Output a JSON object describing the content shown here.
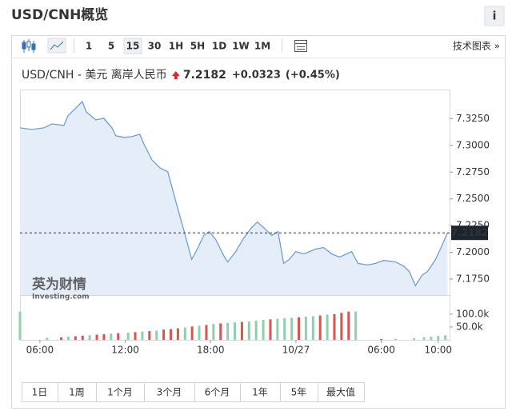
{
  "header": {
    "title": "USD/CNH概览",
    "info": "i"
  },
  "toolbar": {
    "intervals": [
      "1",
      "5",
      "15",
      "30",
      "1H",
      "5H",
      "1D",
      "1W",
      "1M"
    ],
    "selected": 2,
    "tech_chart": "技术图表 »"
  },
  "chart_data": {
    "type": "line",
    "title": "USD/CNH - 美元 离岸人民币",
    "price": 7.2182,
    "change": "+0.0323",
    "change_pct": "(+0.45%)",
    "color": "#6f9fd3",
    "fill": "#e4edf8",
    "x": [
      4.6,
      5.44,
      6.28,
      6.84,
      7.69,
      7.97,
      8.53,
      8.98,
      9.26,
      9.93,
      10.49,
      11.06,
      11.34,
      11.9,
      12.46,
      13.02,
      13.3,
      13.87,
      14.43,
      14.99,
      15.44,
      15.83,
      16.22,
      16.67,
      17.12,
      17.52,
      17.91,
      18.36,
      18.92,
      19.2,
      19.76,
      20.33,
      20.89,
      21.28,
      21.73,
      22.29,
      22.74,
      23.13,
      23.53,
      23.98,
      24.54,
      25.38,
      25.94,
      26.51,
      27.07,
      27.91,
      28.36,
      29.03,
      29.6,
      30.16,
      31.0,
      31.56,
      31.96,
      32.4,
      32.85,
      33.25,
      33.81,
      34.2,
      34.65
    ],
    "values": [
      7.3164,
      7.3149,
      7.3164,
      7.3201,
      7.3187,
      7.3276,
      7.3351,
      7.341,
      7.3313,
      7.3239,
      7.3254,
      7.3164,
      7.309,
      7.3075,
      7.3082,
      7.3104,
      7.3015,
      7.2866,
      7.2791,
      7.2754,
      7.253,
      7.2343,
      7.2157,
      7.1933,
      7.2045,
      7.2157,
      7.2194,
      7.2119,
      7.197,
      7.191,
      7.2007,
      7.2134,
      7.2231,
      7.2284,
      7.2231,
      7.2157,
      7.2194,
      7.1896,
      7.1933,
      7.2007,
      7.1985,
      7.203,
      7.2045,
      7.1985,
      7.1955,
      7.2007,
      7.1896,
      7.1881,
      7.1896,
      7.1925,
      7.191,
      7.1873,
      7.1821,
      7.1687,
      7.1784,
      7.1821,
      7.1933,
      7.2045,
      7.2182
    ],
    "xlim": [
      4.6,
      34.8
    ],
    "xticks": [
      {
        "value": 6,
        "label": "06:00"
      },
      {
        "value": 12,
        "label": "12:00"
      },
      {
        "value": 18,
        "label": "18:00"
      },
      {
        "value": 24,
        "label": "10/27"
      },
      {
        "value": 30,
        "label": "06:00"
      },
      {
        "value": 34,
        "label": "10:00"
      }
    ],
    "ylim": [
      7.16,
      7.35
    ],
    "yticks": [
      {
        "value": 7.325,
        "label": "7.3250"
      },
      {
        "value": 7.3,
        "label": "7.3000"
      },
      {
        "value": 7.275,
        "label": "7.2750"
      },
      {
        "value": 7.25,
        "label": "7.2500"
      },
      {
        "value": 7.225,
        "label": "7.2250"
      },
      {
        "value": 7.2,
        "label": "7.2000"
      },
      {
        "value": 7.175,
        "label": "7.1750"
      }
    ],
    "grid": false,
    "volume": {
      "x": [
        4.6,
        6.5,
        7.5,
        8.0,
        8.5,
        9.0,
        9.5,
        10.0,
        10.5,
        11.0,
        11.5,
        12.2,
        12.7,
        13.2,
        13.7,
        14.2,
        14.7,
        15.2,
        15.7,
        16.2,
        16.7,
        17.2,
        17.7,
        18.2,
        18.7,
        19.2,
        19.7,
        20.2,
        20.7,
        21.2,
        21.7,
        22.2,
        22.7,
        23.2,
        23.7,
        24.2,
        24.7,
        25.2,
        25.7,
        26.2,
        26.7,
        27.2,
        27.7,
        28.2,
        30.0,
        31.0,
        32.3,
        33.0,
        33.5,
        34.0,
        34.5
      ],
      "values": [
        110000,
        8000,
        10000,
        12000,
        14000,
        16000,
        18000,
        20000,
        22000,
        24000,
        26000,
        28000,
        30000,
        32000,
        34000,
        36000,
        40000,
        42000,
        45000,
        48000,
        52000,
        55000,
        58000,
        62000,
        64000,
        66000,
        68000,
        70000,
        72000,
        75000,
        78000,
        80000,
        82000,
        84000,
        86000,
        88000,
        90000,
        92000,
        95000,
        98000,
        100000,
        105000,
        110000,
        110000,
        3000,
        4000,
        6000,
        10000,
        12000,
        15000,
        18000
      ],
      "colors": [
        "#8fcfae",
        "#8fcfae",
        "#d9534f",
        "#8fcfae",
        "#d9534f",
        "#d9534f",
        "#8fcfae",
        "#d9534f",
        "#d9534f",
        "#8fcfae",
        "#d9534f",
        "#8fcfae",
        "#d9534f",
        "#8fcfae",
        "#d9534f",
        "#8fcfae",
        "#d9534f",
        "#d9534f",
        "#d9534f",
        "#8fcfae",
        "#d9534f",
        "#8fcfae",
        "#d9534f",
        "#8fcfae",
        "#d9534f",
        "#8fcfae",
        "#8fcfae",
        "#d9534f",
        "#8fcfae",
        "#8fcfae",
        "#8fcfae",
        "#d9534f",
        "#8fcfae",
        "#8fcfae",
        "#8fcfae",
        "#d9534f",
        "#8fcfae",
        "#8fcfae",
        "#d9534f",
        "#8fcfae",
        "#d9534f",
        "#d9534f",
        "#d9534f",
        "#8fcfae",
        "#d9534f",
        "#8fcfae",
        "#8fcfae",
        "#8fcfae",
        "#8fcfae",
        "#8fcfae",
        "#8fcfae"
      ],
      "ylim": [
        0,
        140000
      ],
      "yticks": [
        {
          "value": 100000,
          "label": "100.0k"
        },
        {
          "value": 50000,
          "label": "50.0k"
        }
      ]
    }
  },
  "watermark": {
    "brand": "英为财情",
    "site": "Investing.com"
  },
  "periods": [
    "1日",
    "1周",
    "1个月",
    "3个月",
    "6个月",
    "1年",
    "5年",
    "最大值"
  ]
}
